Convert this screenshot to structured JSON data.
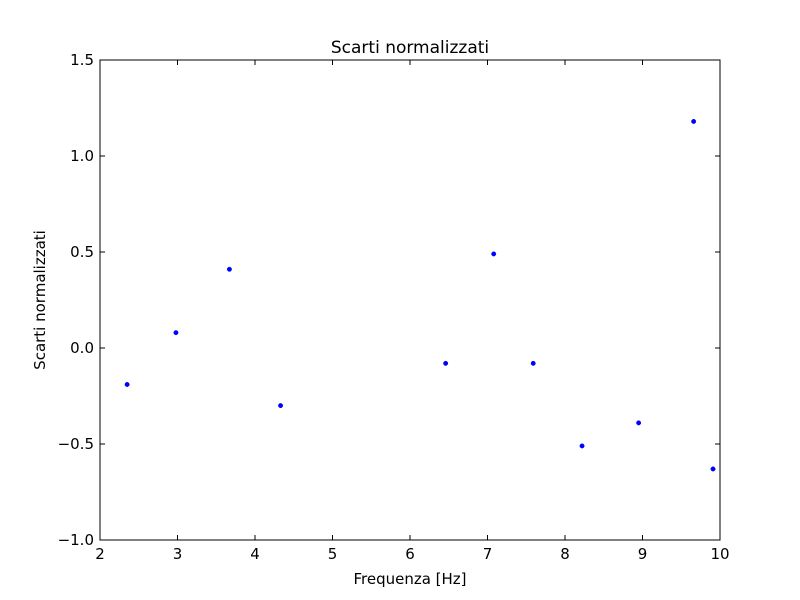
{
  "chart_data": {
    "type": "scatter",
    "title": "Scarti normalizzati",
    "xlabel": "Frequenza [Hz]",
    "ylabel": "Scarti normalizzati",
    "xlim": [
      2,
      10
    ],
    "ylim": [
      -1.0,
      1.5
    ],
    "xticks": [
      "2",
      "3",
      "4",
      "5",
      "6",
      "7",
      "8",
      "9",
      "10"
    ],
    "xtick_values": [
      2,
      3,
      4,
      5,
      6,
      7,
      8,
      9,
      10
    ],
    "yticks": [
      "−1.0",
      "−0.5",
      "0.0",
      "0.5",
      "1.0",
      "1.5"
    ],
    "ytick_values": [
      -1.0,
      -0.5,
      0.0,
      0.5,
      1.0,
      1.5
    ],
    "grid": false,
    "marker_color": "#0000ff",
    "series": [
      {
        "x": [
          2.35,
          2.98,
          3.67,
          4.33,
          6.46,
          7.08,
          7.59,
          8.22,
          8.95,
          9.66,
          9.91
        ],
        "y": [
          -0.19,
          0.08,
          0.41,
          -0.3,
          -0.08,
          0.49,
          -0.08,
          -0.51,
          -0.39,
          1.18,
          -0.63
        ]
      }
    ]
  }
}
